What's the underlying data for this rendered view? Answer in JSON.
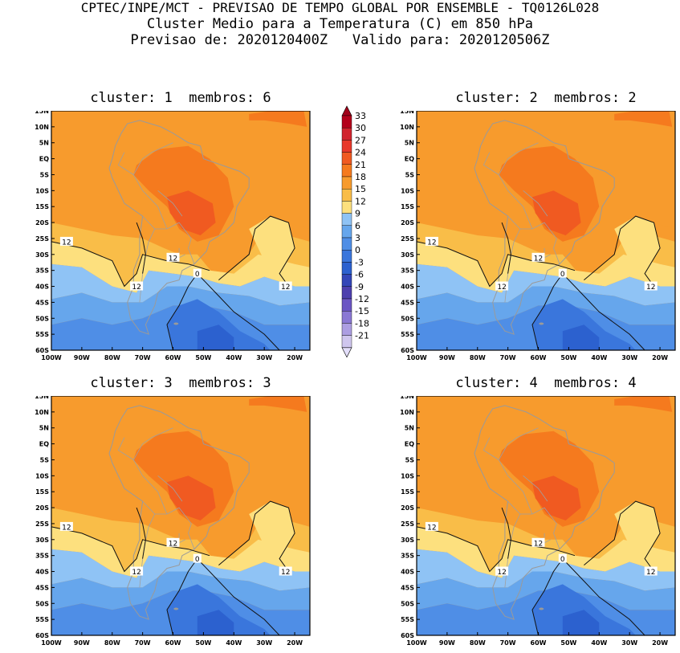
{
  "header": {
    "line1": "CPTEC/INPE/MCT - PREVISAO DE TEMPO GLOBAL POR ENSEMBLE - TQ0126L028",
    "line2": "Cluster Medio para a Temperatura (C) em 850 hPa",
    "line3": "Previsao de: 2020120400Z   Valido para: 2020120506Z"
  },
  "panels": [
    {
      "title": "cluster: 1  membros: 6"
    },
    {
      "title": "cluster: 2  membros: 2"
    },
    {
      "title": "cluster: 3  membros: 3"
    },
    {
      "title": "cluster: 4  membros: 4"
    }
  ],
  "map_axes": {
    "lat_labels": [
      "15N",
      "10N",
      "5N",
      "EQ",
      "5S",
      "10S",
      "15S",
      "20S",
      "25S",
      "30S",
      "35S",
      "40S",
      "45S",
      "50S",
      "55S",
      "60S"
    ],
    "lon_labels": [
      "100W",
      "90W",
      "80W",
      "70W",
      "60W",
      "50W",
      "40W",
      "30W",
      "20W"
    ],
    "contour_labels": {
      "c12a": "12",
      "c12b": "12",
      "c12c": "12",
      "c12d": "12",
      "c0": "0"
    }
  },
  "colorbar": {
    "levels": [
      "33",
      "30",
      "27",
      "24",
      "21",
      "18",
      "15",
      "12",
      "9",
      "6",
      "3",
      "0",
      "-3",
      "-6",
      "-9",
      "-12",
      "-15",
      "-18",
      "-21"
    ],
    "colors": [
      "#b3001b",
      "#d1242e",
      "#e8382a",
      "#f05a21",
      "#f57a1e",
      "#f79b2d",
      "#f9bd48",
      "#fde07e",
      "#8fc3f5",
      "#66a6ec",
      "#4f8ee6",
      "#3a76dc",
      "#2c61cf",
      "#3346b8",
      "#4d3fae",
      "#6b56c4",
      "#8a78d4",
      "#ac9ee2",
      "#cfc6ee"
    ],
    "arrow_top_color": "#a1001a",
    "arrow_bottom_color": "#e3defa"
  }
}
